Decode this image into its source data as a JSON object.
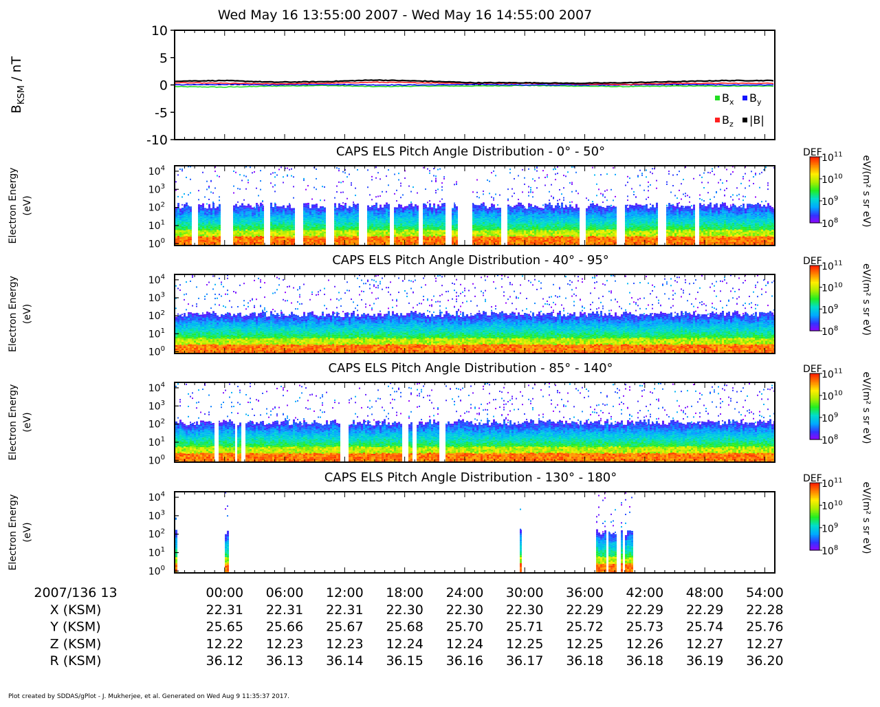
{
  "header": {
    "title": "Wed May 16 13:55:00 2007 - Wed May 16 14:55:00 2007"
  },
  "footer": {
    "credit": "Plot created by SDDAS/gPlot - J. Mukherjee, et al.  Generated on Wed Aug 9 11:35:37 2017."
  },
  "colors": {
    "bx": "#22dd22",
    "by": "#1414ff",
    "bz": "#ff2020",
    "bmag": "#000000",
    "colormap": [
      "#9900ff",
      "#3333ff",
      "#00aaff",
      "#00ddcc",
      "#22ee22",
      "#aaee00",
      "#ffee00",
      "#ff8800",
      "#ff2200"
    ]
  },
  "chart_data": [
    {
      "type": "line",
      "title": "",
      "ylabel": "B",
      "ylabel_sub": "KSM",
      "ylabel_unit": " / nT",
      "ylim": [
        -10,
        10
      ],
      "yticks": [
        10,
        5,
        0,
        -5,
        -10
      ],
      "dashed_zero_line": true,
      "legend": {
        "placement": "bottom-right",
        "entries": [
          {
            "key": "bx",
            "base": "B",
            "sub": "x"
          },
          {
            "key": "by",
            "base": "B",
            "sub": "y"
          },
          {
            "key": "bz",
            "base": "B",
            "sub": "z"
          },
          {
            "key": "bmag",
            "base": "|B|",
            "sub": ""
          }
        ]
      },
      "x_minutes": [
        0,
        5,
        10,
        15,
        20,
        25,
        30,
        35,
        40,
        45,
        50,
        55,
        60
      ],
      "series": [
        {
          "name": "Bx",
          "key": "bx",
          "values": [
            -0.3,
            -0.4,
            -0.2,
            -0.1,
            -0.3,
            -0.2,
            -0.2,
            -0.1,
            -0.2,
            -0.3,
            -0.2,
            -0.2,
            -0.2
          ]
        },
        {
          "name": "By",
          "key": "by",
          "values": [
            0.0,
            0.1,
            0.0,
            0.1,
            0.0,
            0.0,
            0.1,
            0.0,
            0.0,
            0.0,
            0.1,
            0.0,
            0.0
          ]
        },
        {
          "name": "Bz",
          "key": "bz",
          "values": [
            0.4,
            0.3,
            0.2,
            0.3,
            0.5,
            0.4,
            0.3,
            0.3,
            0.2,
            0.1,
            0.3,
            0.3,
            0.3
          ]
        },
        {
          "name": "|B|",
          "key": "bmag",
          "values": [
            0.7,
            0.8,
            0.5,
            0.6,
            0.9,
            0.7,
            0.4,
            0.4,
            0.3,
            0.4,
            0.6,
            0.8,
            0.8
          ]
        }
      ]
    },
    {
      "type": "heatmap",
      "title": "CAPS ELS Pitch Angle Distribution - 0° - 50°",
      "ylabel": "Electron Energy",
      "ylabel_unit": "(eV)",
      "yticks": [
        "10",
        "10",
        "10",
        "10",
        "10"
      ],
      "ytick_exponents": [
        "0",
        "1",
        "2",
        "3",
        "4"
      ],
      "colorbar": {
        "label": "DEF",
        "unit": "eV/(m² s sr eV)",
        "ticks": [
          "10",
          "10",
          "10",
          "10"
        ],
        "exponents": [
          "11",
          "10",
          "9",
          "8"
        ],
        "range_log10": [
          8,
          11
        ]
      },
      "data_gaps_minutes": [
        [
          1.6,
          2.2
        ],
        [
          4.6,
          5.8
        ],
        [
          8.8,
          9.5
        ],
        [
          11.9,
          12.8
        ],
        [
          15.0,
          15.9
        ],
        [
          18.4,
          19.1
        ],
        [
          21.5,
          21.8
        ],
        [
          24.2,
          24.8
        ],
        [
          27.0,
          27.5
        ],
        [
          28.3,
          29.7
        ],
        [
          32.6,
          33.1
        ],
        [
          40.4,
          40.9
        ],
        [
          44.1,
          44.9
        ],
        [
          48.2,
          49.1
        ],
        [
          52.0,
          52.4
        ]
      ]
    },
    {
      "type": "heatmap",
      "title": "CAPS ELS Pitch Angle Distribution - 40° - 95°",
      "ylabel": "Electron Energy",
      "ylabel_unit": "(eV)",
      "yticks": [
        "10",
        "10",
        "10",
        "10",
        "10"
      ],
      "ytick_exponents": [
        "0",
        "1",
        "2",
        "3",
        "4"
      ],
      "colorbar": {
        "label": "DEF",
        "unit": "eV/(m² s sr eV)",
        "ticks": [
          "10",
          "10",
          "10",
          "10"
        ],
        "exponents": [
          "11",
          "10",
          "9",
          "8"
        ],
        "range_log10": [
          8,
          11
        ]
      },
      "data_gaps_minutes": []
    },
    {
      "type": "heatmap",
      "title": "CAPS ELS Pitch Angle Distribution - 85° - 140°",
      "ylabel": "Electron Energy",
      "ylabel_unit": "(eV)",
      "yticks": [
        "10",
        "10",
        "10",
        "10",
        "10"
      ],
      "ytick_exponents": [
        "0",
        "1",
        "2",
        "3",
        "4"
      ],
      "colorbar": {
        "label": "DEF",
        "unit": "eV/(m² s sr eV)",
        "ticks": [
          "10",
          "10",
          "10",
          "10"
        ],
        "exponents": [
          "11",
          "10",
          "9",
          "8"
        ],
        "range_log10": [
          8,
          11
        ]
      },
      "data_gaps_minutes": [
        [
          3.9,
          4.2
        ],
        [
          6.0,
          6.2
        ],
        [
          6.6,
          6.9
        ],
        [
          16.4,
          17.2
        ],
        [
          22.6,
          23.2
        ],
        [
          23.6,
          24.1
        ],
        [
          26.3,
          27.0
        ]
      ]
    },
    {
      "type": "heatmap",
      "title": "CAPS ELS Pitch Angle Distribution - 130° - 180°",
      "ylabel": "Electron Energy",
      "ylabel_unit": "(eV)",
      "yticks": [
        "10",
        "10",
        "10",
        "10",
        "10"
      ],
      "ytick_exponents": [
        "0",
        "1",
        "2",
        "3",
        "4"
      ],
      "colorbar": {
        "label": "DEF",
        "unit": "eV/(m² s sr eV)",
        "ticks": [
          "10",
          "10",
          "10",
          "10"
        ],
        "exponents": [
          "11",
          "10",
          "9",
          "8"
        ],
        "range_log10": [
          8,
          11
        ]
      },
      "data_intervals_minutes": [
        [
          0.0,
          0.15
        ],
        [
          5.0,
          5.4
        ],
        [
          34.4,
          34.6
        ],
        [
          42.0,
          43.0
        ],
        [
          43.3,
          44.0
        ],
        [
          44.4,
          44.7
        ],
        [
          44.9,
          45.7
        ]
      ]
    }
  ],
  "time_axis": {
    "start_label": "2007/136 13",
    "tick_minutes": [
      5,
      11,
      17,
      23,
      29,
      35,
      41,
      47,
      53,
      59
    ],
    "labels": [
      "00:00",
      "06:00",
      "12:00",
      "18:00",
      "24:00",
      "30:00",
      "36:00",
      "42:00",
      "48:00",
      "54:00"
    ],
    "rows": [
      {
        "name": "X (KSM)",
        "values": [
          "22.31",
          "22.31",
          "22.31",
          "22.30",
          "22.30",
          "22.30",
          "22.29",
          "22.29",
          "22.29",
          "22.28"
        ]
      },
      {
        "name": "Y (KSM)",
        "values": [
          "25.65",
          "25.66",
          "25.67",
          "25.68",
          "25.70",
          "25.71",
          "25.72",
          "25.73",
          "25.74",
          "25.76"
        ]
      },
      {
        "name": "Z (KSM)",
        "values": [
          "12.22",
          "12.23",
          "12.23",
          "12.24",
          "12.24",
          "12.25",
          "12.25",
          "12.26",
          "12.27",
          "12.27"
        ]
      },
      {
        "name": "R (KSM)",
        "values": [
          "36.12",
          "36.13",
          "36.14",
          "36.15",
          "36.16",
          "36.17",
          "36.18",
          "36.18",
          "36.19",
          "36.20"
        ]
      }
    ]
  }
}
